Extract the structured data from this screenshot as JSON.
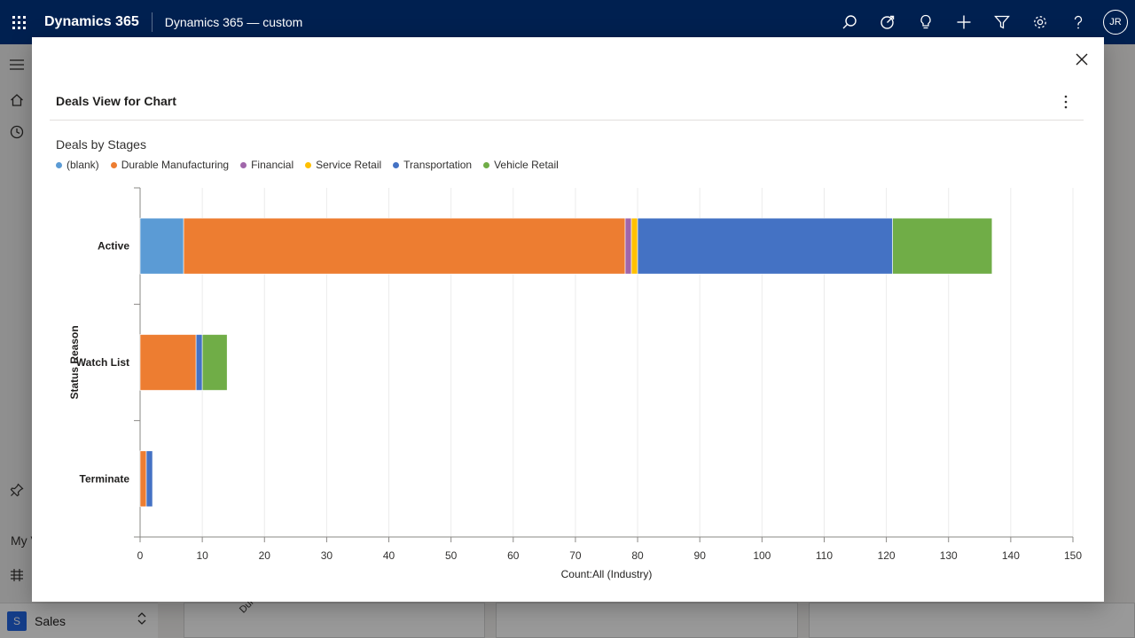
{
  "topbar": {
    "brand": "Dynamics 365",
    "app_title": "Dynamics 365 — custom",
    "user_initials": "JR",
    "icons": [
      "search-icon",
      "assistant-icon",
      "lightbulb-icon",
      "plus-icon",
      "filter-icon",
      "gear-icon",
      "help-icon"
    ]
  },
  "sidebar": {
    "partial_text": "My V",
    "area_badge": "S",
    "area_label": "Sales"
  },
  "background": {
    "rotated_label": "Durable"
  },
  "dialog": {
    "title": "Deals View for Chart"
  },
  "colors": {
    "topbar": "#002050",
    "blank": "#5b9bd5",
    "durable_manufacturing": "#ed7d31",
    "financial": "#a066aa",
    "service_retail": "#ffc000",
    "transportation": "#4472c4",
    "vehicle_retail": "#70ad47"
  },
  "chart_data": {
    "type": "bar",
    "orientation": "horizontal",
    "stacked": true,
    "title": "Deals by Stages",
    "xlabel": "Count:All (Industry)",
    "ylabel": "Status Reason",
    "xlim": [
      0,
      150
    ],
    "xticks": [
      0,
      10,
      20,
      30,
      40,
      50,
      60,
      70,
      80,
      90,
      100,
      110,
      120,
      130,
      140,
      150
    ],
    "grid": true,
    "legend": "top-left",
    "categories": [
      "Active",
      "Watch List",
      "Terminate"
    ],
    "series": [
      {
        "name": "(blank)",
        "color": "#5b9bd5",
        "values": [
          7,
          0,
          0
        ]
      },
      {
        "name": "Durable Manufacturing",
        "color": "#ed7d31",
        "values": [
          71,
          9,
          1
        ]
      },
      {
        "name": "Financial",
        "color": "#a066aa",
        "values": [
          1,
          0,
          0
        ]
      },
      {
        "name": "Service Retail",
        "color": "#ffc000",
        "values": [
          1,
          0,
          0
        ]
      },
      {
        "name": "Transportation",
        "color": "#4472c4",
        "values": [
          41,
          1,
          1
        ]
      },
      {
        "name": "Vehicle Retail",
        "color": "#70ad47",
        "values": [
          16,
          4,
          0
        ]
      }
    ]
  }
}
